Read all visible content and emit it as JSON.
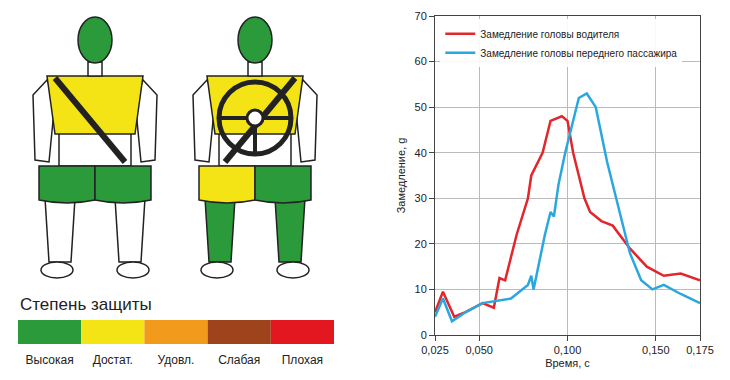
{
  "chart_data": {
    "type": "line",
    "xlabel": "Время, с",
    "ylabel": "Замедление, g",
    "xlim": [
      0.025,
      0.175
    ],
    "xticks": [
      {
        "value": 0.025,
        "label": "0,025"
      },
      {
        "value": 0.05,
        "label": "0,050"
      },
      {
        "value": 0.1,
        "label": "0,100"
      },
      {
        "value": 0.15,
        "label": "0,150"
      },
      {
        "value": 0.175,
        "label": "0,175"
      }
    ],
    "ylim": [
      0,
      70
    ],
    "yticks": [
      0,
      10,
      20,
      30,
      40,
      50,
      60,
      70
    ],
    "grid": true,
    "legend": "upper left",
    "series": [
      {
        "name": "Замедление головы водителя",
        "color": "#e3262b",
        "x": [
          0.025,
          0.0295,
          0.0359,
          0.0423,
          0.0519,
          0.0583,
          0.0615,
          0.0647,
          0.0712,
          0.0776,
          0.0795,
          0.0859,
          0.0904,
          0.0968,
          0.1,
          0.1032,
          0.1096,
          0.1128,
          0.1192,
          0.1256,
          0.1353,
          0.1449,
          0.1545,
          0.1641,
          0.175
        ],
        "values": [
          5,
          9.5,
          4,
          5,
          7,
          6,
          12.5,
          12,
          22,
          30,
          35,
          40,
          47,
          48,
          47,
          40,
          30,
          27,
          25,
          24,
          19,
          15,
          13,
          13.5,
          12
        ]
      },
      {
        "name": "Замедление головы переднего пассажира",
        "color": "#2aa7df",
        "x": [
          0.025,
          0.0295,
          0.0346,
          0.0423,
          0.0519,
          0.068,
          0.0776,
          0.0795,
          0.0808,
          0.0872,
          0.0904,
          0.0923,
          0.0949,
          0.0987,
          0.1019,
          0.1064,
          0.1109,
          0.116,
          0.1224,
          0.1288,
          0.1353,
          0.1417,
          0.1481,
          0.1545,
          0.1641,
          0.175
        ],
        "values": [
          4,
          8,
          3,
          5,
          7,
          8,
          11,
          13,
          10,
          22,
          27,
          26,
          33,
          40,
          45,
          52,
          53,
          50,
          38,
          28,
          18,
          12,
          10,
          11,
          9,
          7
        ]
      }
    ]
  },
  "diagram": {
    "legend": {
      "title": "Степень защиты",
      "levels": [
        {
          "label": "Высокая",
          "color": "#2a9a3a"
        },
        {
          "label": "Достат.",
          "color": "#f4e415"
        },
        {
          "label": "Удовл.",
          "color": "#f29a1c"
        },
        {
          "label": "Слабая",
          "color": "#9e431b"
        },
        {
          "label": "Плохая",
          "color": "#e3171f"
        }
      ]
    },
    "dummies": [
      {
        "steering_wheel": false,
        "regions": {
          "head": "Высокая",
          "chest": "Достат.",
          "thigh_left": "Высокая",
          "thigh_right": "Высокая"
        }
      },
      {
        "steering_wheel": true,
        "regions": {
          "head": "Высокая",
          "chest": "Достат.",
          "thigh_left": "Достат.",
          "thigh_right": "Высокая",
          "lower_leg_left": "Высокая",
          "lower_leg_right": "Высокая"
        }
      }
    ]
  }
}
